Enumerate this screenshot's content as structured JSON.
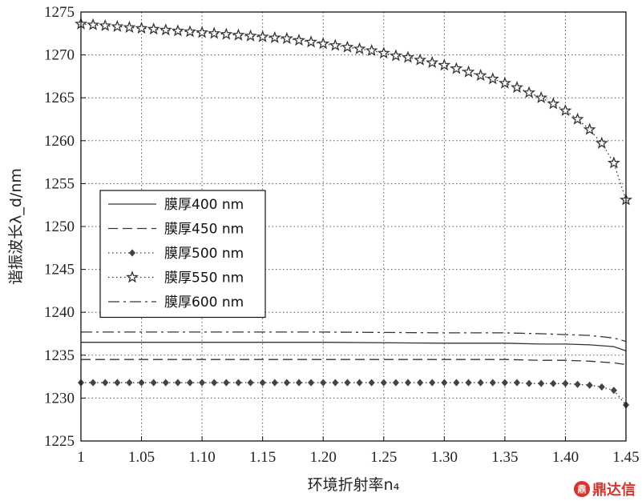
{
  "chart_data": {
    "type": "line",
    "xlabel": "环境折射率n₄",
    "ylabel": "谐振波长λ_d/nm",
    "xlim": [
      1.0,
      1.45
    ],
    "ylim": [
      1225,
      1275
    ],
    "x_ticks": [
      "1",
      "1.05",
      "1.10",
      "1.15",
      "1.20",
      "1.25",
      "1.30",
      "1.35",
      "1.40",
      "1.45"
    ],
    "y_ticks": [
      1225,
      1230,
      1235,
      1240,
      1245,
      1250,
      1255,
      1260,
      1265,
      1270,
      1275
    ],
    "grid": true,
    "legend_position": "left-middle",
    "series": [
      {
        "name": "膜厚400 nm",
        "style": "solid",
        "marker": "none",
        "x": [
          1.0,
          1.1,
          1.2,
          1.3,
          1.35,
          1.38,
          1.4,
          1.42,
          1.44,
          1.45
        ],
        "y": [
          1236.5,
          1236.5,
          1236.5,
          1236.4,
          1236.4,
          1236.3,
          1236.3,
          1236.2,
          1236.0,
          1235.5
        ]
      },
      {
        "name": "膜厚450 nm",
        "style": "dashed",
        "marker": "none",
        "x": [
          1.0,
          1.1,
          1.2,
          1.3,
          1.35,
          1.38,
          1.4,
          1.42,
          1.44,
          1.45
        ],
        "y": [
          1234.5,
          1234.5,
          1234.5,
          1234.5,
          1234.5,
          1234.4,
          1234.4,
          1234.3,
          1234.1,
          1233.9
        ]
      },
      {
        "name": "膜厚500 nm",
        "style": "dotted",
        "marker": "diamond",
        "x": [
          1.0,
          1.01,
          1.02,
          1.03,
          1.04,
          1.05,
          1.06,
          1.07,
          1.08,
          1.09,
          1.1,
          1.11,
          1.12,
          1.13,
          1.14,
          1.15,
          1.16,
          1.17,
          1.18,
          1.19,
          1.2,
          1.21,
          1.22,
          1.23,
          1.24,
          1.25,
          1.26,
          1.27,
          1.28,
          1.29,
          1.3,
          1.31,
          1.32,
          1.33,
          1.34,
          1.35,
          1.36,
          1.37,
          1.38,
          1.39,
          1.4,
          1.41,
          1.42,
          1.43,
          1.44,
          1.45
        ],
        "y": [
          1231.8,
          1231.8,
          1231.8,
          1231.8,
          1231.8,
          1231.8,
          1231.8,
          1231.8,
          1231.8,
          1231.8,
          1231.8,
          1231.8,
          1231.8,
          1231.8,
          1231.8,
          1231.8,
          1231.8,
          1231.8,
          1231.8,
          1231.8,
          1231.8,
          1231.8,
          1231.8,
          1231.8,
          1231.8,
          1231.8,
          1231.8,
          1231.8,
          1231.8,
          1231.8,
          1231.8,
          1231.8,
          1231.8,
          1231.8,
          1231.8,
          1231.8,
          1231.8,
          1231.7,
          1231.7,
          1231.7,
          1231.7,
          1231.6,
          1231.5,
          1231.3,
          1230.9,
          1229.2
        ]
      },
      {
        "name": "膜厚550 nm",
        "style": "dotted",
        "marker": "star",
        "x": [
          1.0,
          1.01,
          1.02,
          1.03,
          1.04,
          1.05,
          1.06,
          1.07,
          1.08,
          1.09,
          1.1,
          1.11,
          1.12,
          1.13,
          1.14,
          1.15,
          1.16,
          1.17,
          1.18,
          1.19,
          1.2,
          1.21,
          1.22,
          1.23,
          1.24,
          1.25,
          1.26,
          1.27,
          1.28,
          1.29,
          1.3,
          1.31,
          1.32,
          1.33,
          1.34,
          1.35,
          1.36,
          1.37,
          1.38,
          1.39,
          1.4,
          1.41,
          1.42,
          1.43,
          1.44,
          1.45
        ],
        "y": [
          1273.6,
          1273.5,
          1273.4,
          1273.3,
          1273.2,
          1273.1,
          1273.0,
          1272.9,
          1272.8,
          1272.7,
          1272.6,
          1272.5,
          1272.4,
          1272.3,
          1272.2,
          1272.1,
          1272.0,
          1271.9,
          1271.7,
          1271.5,
          1271.3,
          1271.1,
          1270.9,
          1270.7,
          1270.5,
          1270.2,
          1269.9,
          1269.7,
          1269.4,
          1269.1,
          1268.8,
          1268.4,
          1268.0,
          1267.6,
          1267.2,
          1266.7,
          1266.2,
          1265.6,
          1265.0,
          1264.3,
          1263.5,
          1262.5,
          1261.3,
          1259.7,
          1257.4,
          1253.1
        ]
      },
      {
        "name": "膜厚600 nm",
        "style": "dashdot",
        "marker": "none",
        "x": [
          1.0,
          1.1,
          1.2,
          1.3,
          1.35,
          1.38,
          1.4,
          1.42,
          1.44,
          1.45
        ],
        "y": [
          1237.7,
          1237.7,
          1237.7,
          1237.6,
          1237.6,
          1237.5,
          1237.4,
          1237.3,
          1237.0,
          1236.6
        ]
      }
    ]
  },
  "logo": {
    "text": "鼎达信",
    "mark": "鼎"
  }
}
